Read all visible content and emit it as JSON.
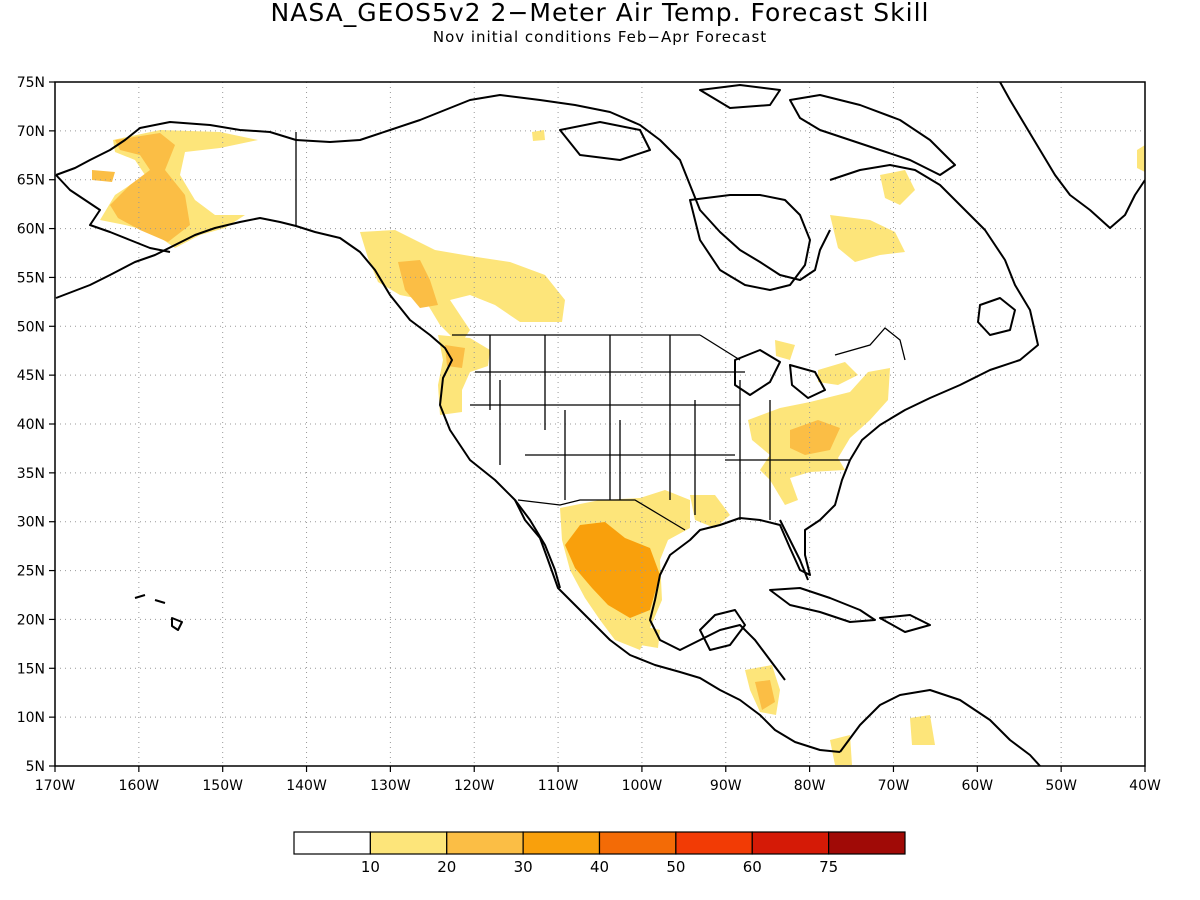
{
  "title": "NASA_GEOS5v2 2−Meter Air Temp. Forecast Skill",
  "subtitle": "Nov initial conditions  Feb−Apr Forecast",
  "map": {
    "lon_range": [
      -170,
      -40
    ],
    "lat_range": [
      5,
      75
    ],
    "lat_ticks": [
      "5N",
      "10N",
      "15N",
      "20N",
      "25N",
      "30N",
      "35N",
      "40N",
      "45N",
      "50N",
      "55N",
      "60N",
      "65N",
      "70N",
      "75N"
    ],
    "lon_ticks": [
      "170W",
      "160W",
      "150W",
      "140W",
      "130W",
      "120W",
      "110W",
      "100W",
      "90W",
      "80W",
      "70W",
      "60W",
      "50W",
      "40W"
    ],
    "grid": "dotted",
    "projection": "equirectangular"
  },
  "colorbar": {
    "colors": [
      "#ffffff",
      "#fde57a",
      "#fbbe45",
      "#f9a00c",
      "#f36b06",
      "#f23b05",
      "#d51a06",
      "#a00a06"
    ],
    "labels": [
      "10",
      "20",
      "30",
      "40",
      "50",
      "60",
      "75"
    ]
  },
  "skill_regions": [
    {
      "region": "Alaska",
      "level": "20-30"
    },
    {
      "region": "Western Canada",
      "level": "10-20"
    },
    {
      "region": "Pacific Northwest",
      "level": "10-20"
    },
    {
      "region": "Northern Mexico",
      "level": "30-40"
    },
    {
      "region": "Eastern United States",
      "level": "10-20"
    },
    {
      "region": "Quebec",
      "level": "10-20"
    },
    {
      "region": "Central America",
      "level": "20-30"
    }
  ]
}
